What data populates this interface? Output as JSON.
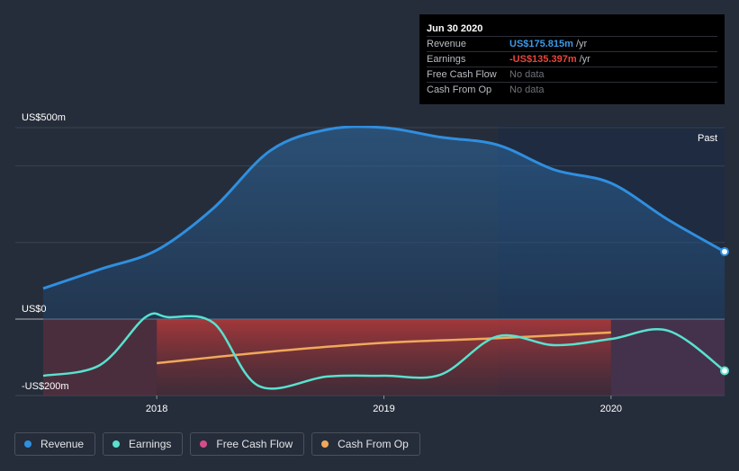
{
  "tooltip": {
    "date": "Jun 30 2020",
    "rows": [
      {
        "label": "Revenue",
        "value": "US$175.815m",
        "unit": "/yr",
        "color": "#3d9ae8"
      },
      {
        "label": "Earnings",
        "value": "-US$135.397m",
        "unit": "/yr",
        "color": "#e8453d"
      },
      {
        "label": "Free Cash Flow",
        "value": "No data",
        "unit": ""
      },
      {
        "label": "Cash From Op",
        "value": "No data",
        "unit": ""
      }
    ]
  },
  "past_label": "Past",
  "legend": [
    {
      "label": "Revenue",
      "color": "#2f8fe0"
    },
    {
      "label": "Earnings",
      "color": "#58e2cf"
    },
    {
      "label": "Free Cash Flow",
      "color": "#d64d8a"
    },
    {
      "label": "Cash From Op",
      "color": "#f0a95a"
    }
  ],
  "chart_data": {
    "type": "line",
    "title": "",
    "xlabel": "",
    "ylabel": "",
    "y_tick_labels": [
      "US$500m",
      "US$0",
      "-US$200m"
    ],
    "x_tick_labels": [
      {
        "label": "2018",
        "x": 2018.0
      },
      {
        "label": "2019",
        "x": 2019.0
      },
      {
        "label": "2020",
        "x": 2020.0
      }
    ],
    "xlim": [
      2017.5,
      2020.5
    ],
    "ylim": [
      -200,
      500
    ],
    "series": [
      {
        "name": "Revenue",
        "color": "#2f8fe0",
        "x": [
          2017.5,
          2017.75,
          2018.0,
          2018.25,
          2018.5,
          2018.75,
          2019.0,
          2019.25,
          2019.5,
          2019.75,
          2020.0,
          2020.25,
          2020.5
        ],
        "y": [
          80,
          130,
          180,
          290,
          440,
          495,
          500,
          475,
          455,
          390,
          355,
          260,
          176
        ]
      },
      {
        "name": "Earnings",
        "color": "#58e2cf",
        "x": [
          2017.5,
          2017.75,
          2017.95,
          2018.05,
          2018.25,
          2018.45,
          2018.75,
          2019.0,
          2019.25,
          2019.5,
          2019.75,
          2020.0,
          2020.25,
          2020.5
        ],
        "y": [
          -148,
          -120,
          5,
          5,
          -10,
          -175,
          -150,
          -148,
          -145,
          -45,
          -68,
          -52,
          -30,
          -135
        ]
      },
      {
        "name": "Cash From Op",
        "color": "#f0a95a",
        "x": [
          2018.0,
          2018.5,
          2019.0,
          2019.5,
          2020.0
        ],
        "y": [
          -115,
          -85,
          -62,
          -50,
          -35
        ]
      }
    ]
  }
}
